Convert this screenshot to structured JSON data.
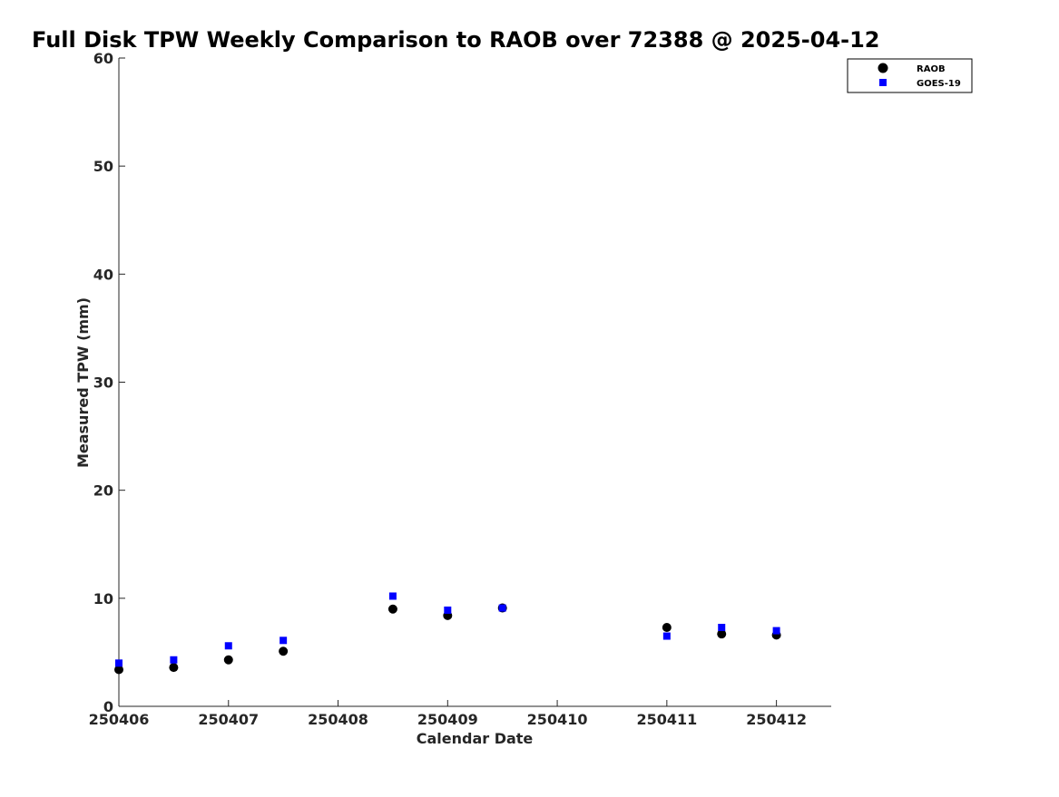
{
  "chart_data": {
    "type": "scatter",
    "title": "Full Disk TPW Weekly Comparison to RAOB over 72388 @ 2025-04-12",
    "xlabel": "Calendar Date",
    "ylabel": "Measured TPW (mm)",
    "xlim": [
      250406,
      250412.5
    ],
    "ylim": [
      0,
      60
    ],
    "xticks": [
      250406,
      250407,
      250408,
      250409,
      250410,
      250411,
      250412
    ],
    "xtick_labels": [
      "250406",
      "250407",
      "250408",
      "250409",
      "250410",
      "250411",
      "250412"
    ],
    "yticks": [
      0,
      10,
      20,
      30,
      40,
      50,
      60
    ],
    "ytick_labels": [
      "0",
      "10",
      "20",
      "30",
      "40",
      "50",
      "60"
    ],
    "grid": false,
    "legend_position": "top-right (outside axes)",
    "x": [
      250406,
      250406.5,
      250407,
      250407.5,
      250408.5,
      250409,
      250409.5,
      250411,
      250411.5,
      250412
    ],
    "series": [
      {
        "name": "RAOB",
        "marker": "circle",
        "color": "#000000",
        "values": [
          3.4,
          3.6,
          4.3,
          5.1,
          9.0,
          8.4,
          9.1,
          7.3,
          6.7,
          6.6
        ]
      },
      {
        "name": "GOES-19",
        "marker": "square",
        "color": "#0000ff",
        "values": [
          4.0,
          4.3,
          5.6,
          6.1,
          10.2,
          8.9,
          9.1,
          6.5,
          7.3,
          7.0
        ]
      }
    ]
  }
}
